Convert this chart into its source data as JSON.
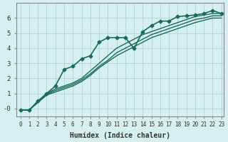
{
  "xlabel": "Humidex (Indice chaleur)",
  "ylabel": "",
  "background_color": "#d6efef",
  "grid_color": "#b0d4d4",
  "line_color": "#1a6b5a",
  "xlim": [
    0,
    23
  ],
  "ylim": [
    -0.5,
    7
  ],
  "yticks": [
    0,
    1,
    2,
    3,
    4,
    5,
    6
  ],
  "ytick_labels": [
    "-0",
    "1",
    "2",
    "3",
    "4",
    "5",
    "6"
  ],
  "xticks": [
    0,
    1,
    2,
    3,
    4,
    5,
    6,
    7,
    8,
    9,
    10,
    11,
    12,
    13,
    14,
    15,
    16,
    17,
    18,
    19,
    20,
    21,
    22,
    23
  ],
  "series": [
    {
      "x": [
        0,
        1,
        2,
        3,
        4,
        5,
        6,
        7,
        8,
        9,
        10,
        11,
        12,
        13,
        14,
        15,
        16,
        17,
        18,
        19,
        20,
        21,
        22,
        23
      ],
      "y": [
        -0.1,
        -0.1,
        0.5,
        1.0,
        1.5,
        2.6,
        2.8,
        3.3,
        3.5,
        4.4,
        4.7,
        4.7,
        4.7,
        4.0,
        5.1,
        5.5,
        5.8,
        5.8,
        6.1,
        6.15,
        6.2,
        6.3,
        6.5,
        6.3
      ],
      "marker": "D",
      "markersize": 2.5,
      "linewidth": 1.2
    },
    {
      "x": [
        0,
        1,
        2,
        3,
        4,
        5,
        6,
        7,
        8,
        9,
        10,
        11,
        12,
        13,
        14,
        15,
        16,
        17,
        18,
        19,
        20,
        21,
        22,
        23
      ],
      "y": [
        -0.1,
        -0.1,
        0.5,
        1.0,
        1.3,
        1.5,
        1.7,
        2.0,
        2.5,
        3.0,
        3.5,
        4.0,
        4.3,
        4.6,
        4.9,
        5.1,
        5.3,
        5.5,
        5.7,
        5.9,
        6.1,
        6.2,
        6.3,
        6.3
      ],
      "marker": null,
      "markersize": 0,
      "linewidth": 1.0
    },
    {
      "x": [
        0,
        1,
        2,
        3,
        4,
        5,
        6,
        7,
        8,
        9,
        10,
        11,
        12,
        13,
        14,
        15,
        16,
        17,
        18,
        19,
        20,
        21,
        22,
        23
      ],
      "y": [
        -0.1,
        -0.1,
        0.45,
        0.95,
        1.2,
        1.4,
        1.6,
        1.9,
        2.3,
        2.8,
        3.2,
        3.7,
        4.0,
        4.3,
        4.6,
        4.9,
        5.1,
        5.3,
        5.5,
        5.7,
        5.9,
        6.0,
        6.15,
        6.15
      ],
      "marker": null,
      "markersize": 0,
      "linewidth": 1.0
    },
    {
      "x": [
        0,
        1,
        2,
        3,
        4,
        5,
        6,
        7,
        8,
        9,
        10,
        11,
        12,
        13,
        14,
        15,
        16,
        17,
        18,
        19,
        20,
        21,
        22,
        23
      ],
      "y": [
        -0.1,
        -0.1,
        0.4,
        0.9,
        1.1,
        1.3,
        1.5,
        1.8,
        2.2,
        2.7,
        3.1,
        3.5,
        3.8,
        4.1,
        4.4,
        4.7,
        4.9,
        5.1,
        5.3,
        5.5,
        5.7,
        5.85,
        6.0,
        6.0
      ],
      "marker": null,
      "markersize": 0,
      "linewidth": 1.0
    }
  ]
}
